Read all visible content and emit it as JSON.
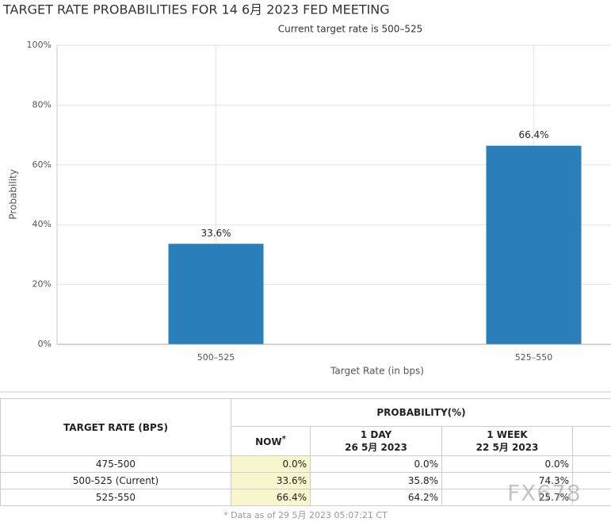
{
  "chart_data": {
    "type": "bar",
    "title": "TARGET RATE PROBABILITIES FOR 14 6月 2023 FED MEETING",
    "subtitle": "Current target rate is 500–525",
    "x_label": "Target Rate (in bps)",
    "y_label": "Probability",
    "categories": [
      "500–525",
      "525–550"
    ],
    "values": [
      33.6,
      66.4
    ],
    "value_labels": [
      "33.6%",
      "66.4%"
    ],
    "color": "#2a7fba",
    "ylim": [
      0,
      100
    ],
    "yticks": [
      {
        "value": 0,
        "label": "0%"
      },
      {
        "value": 20,
        "label": "20%"
      },
      {
        "value": 40,
        "label": "40%"
      },
      {
        "value": 60,
        "label": "60%"
      },
      {
        "value": 80,
        "label": "80%"
      },
      {
        "value": 100,
        "label": "100%"
      }
    ],
    "grid": true
  },
  "table": {
    "header": {
      "rate": "TARGET RATE (BPS)",
      "probability": "PROBABILITY(%)",
      "now": "NOW",
      "now_note": "*",
      "day": "1 DAY",
      "day_date": "26 5月 2023",
      "week": "1 WEEK",
      "week_date": "22 5月 2023"
    },
    "rows": [
      [
        "475-500",
        "0.0%",
        "0.0%",
        "0.0%"
      ],
      [
        "500-525 (Current)",
        "33.6%",
        "35.8%",
        "74.3%"
      ],
      [
        "525-550",
        "66.4%",
        "64.2%",
        "25.7%"
      ]
    ],
    "footnote": "* Data as of 29 5月 2023 05:07:21 CT"
  },
  "watermark": "FX678"
}
